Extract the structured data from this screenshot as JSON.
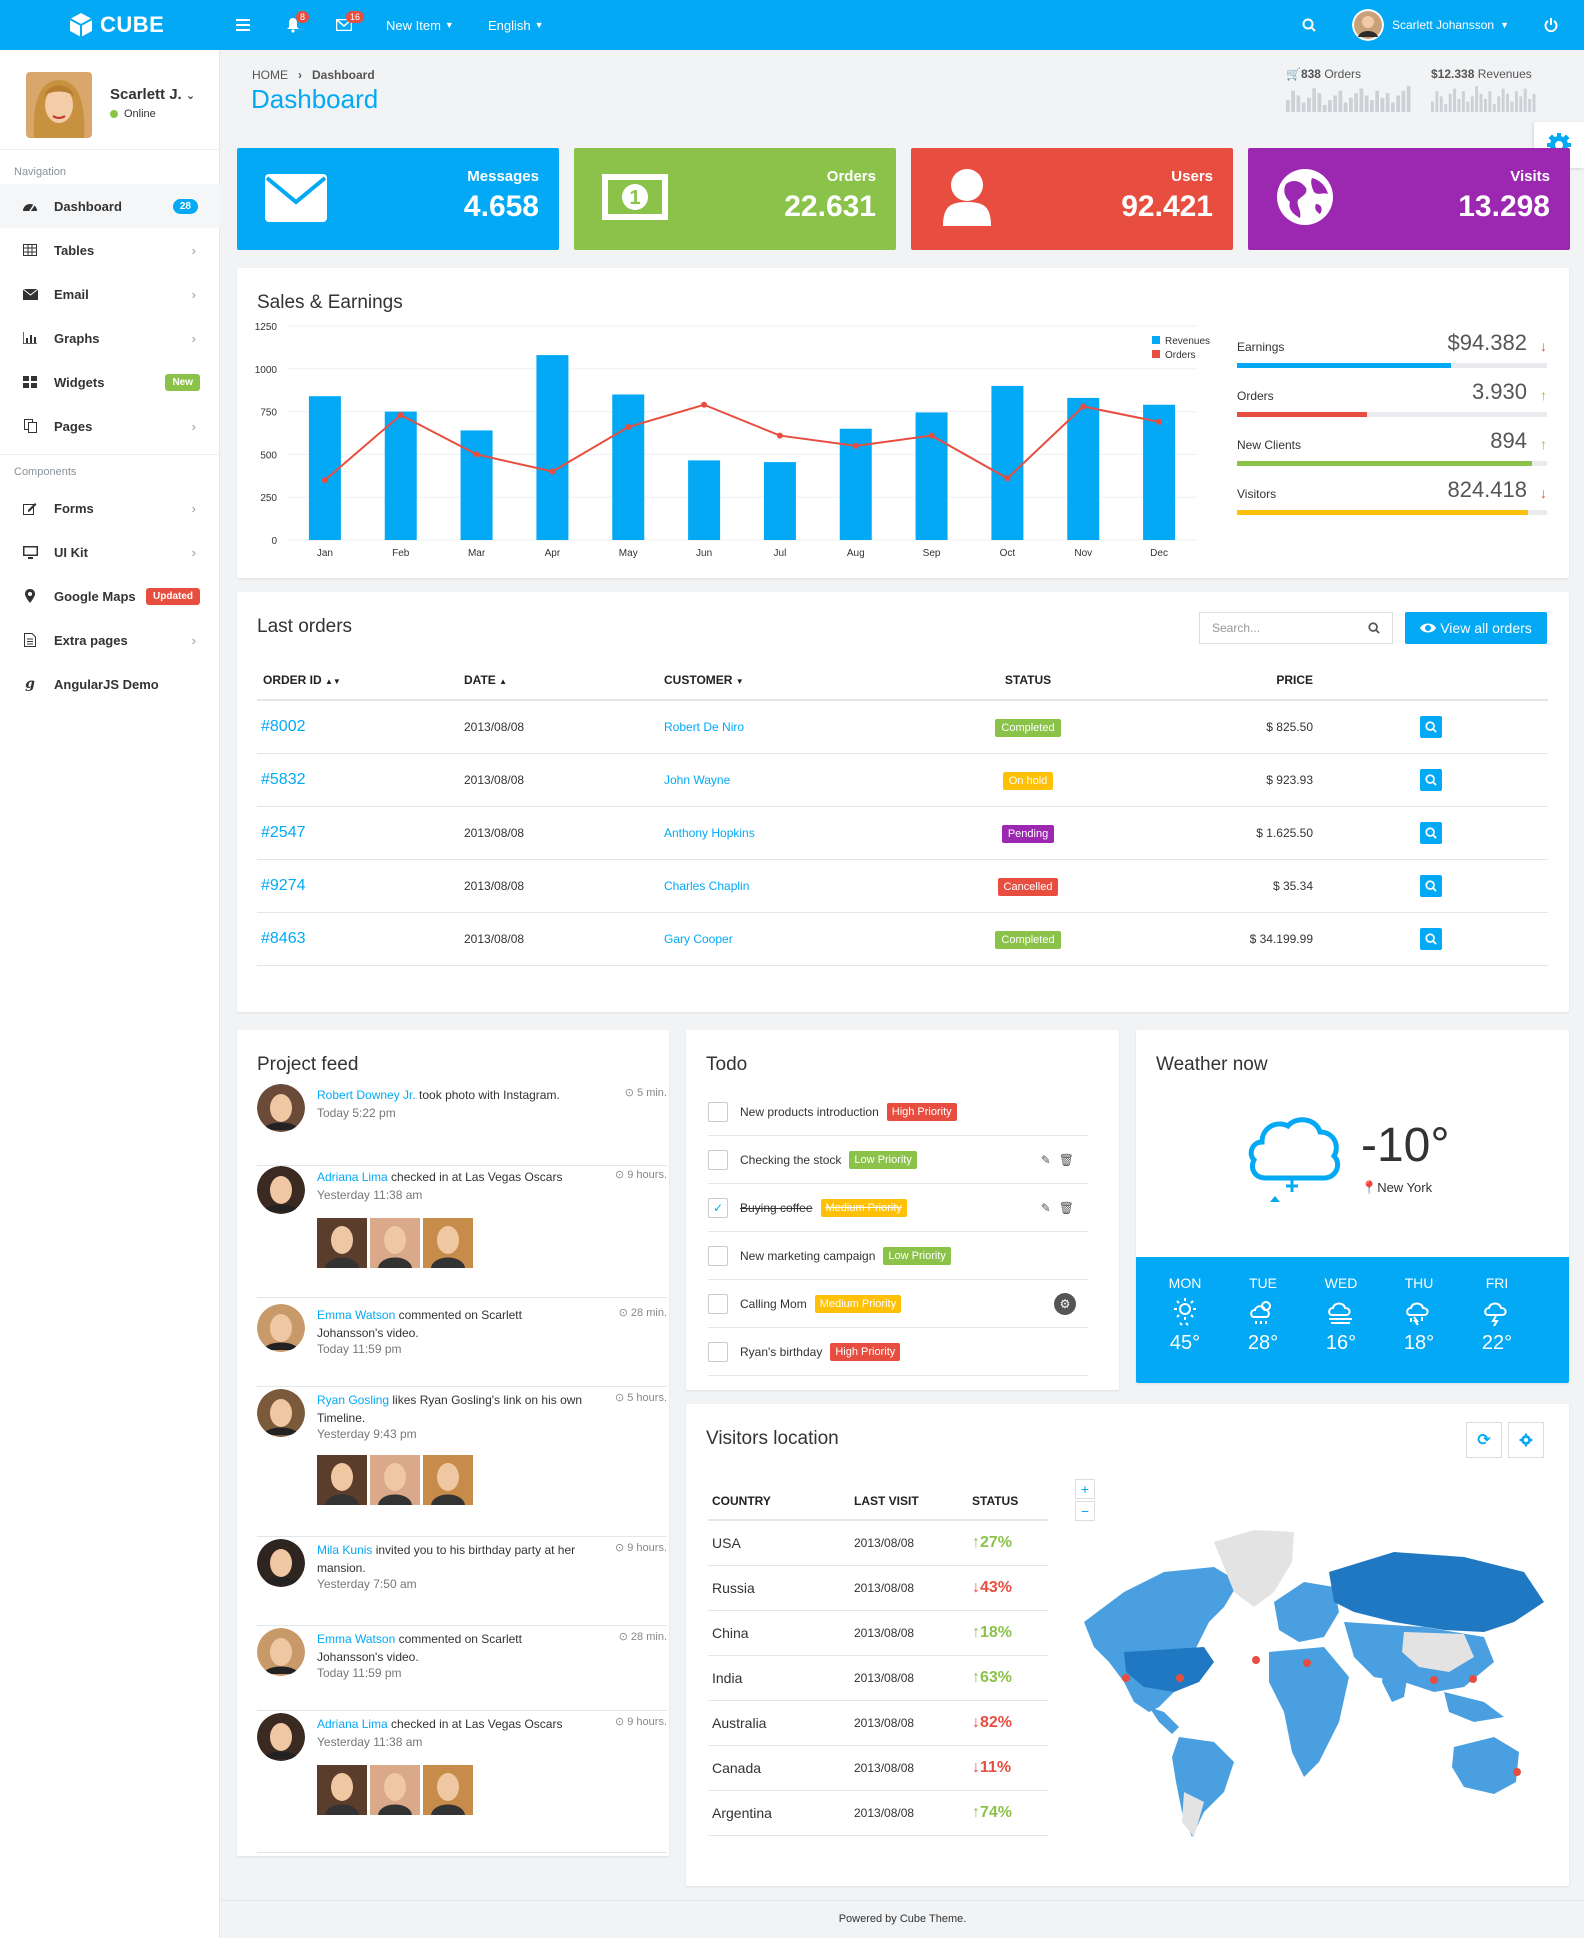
{
  "topbar": {
    "brand": "CUBE",
    "notif_count": "8",
    "mail_count": "16",
    "new_item": "New Item",
    "language": "English",
    "user": "Scarlett Johansson"
  },
  "sidebar": {
    "user_name": "Scarlett J.",
    "status": "Online",
    "nav_title": "Navigation",
    "comp_title": "Components",
    "items": [
      {
        "label": "Dashboard",
        "badge": "28"
      },
      {
        "label": "Tables"
      },
      {
        "label": "Email"
      },
      {
        "label": "Graphs"
      },
      {
        "label": "Widgets",
        "badge": "New"
      },
      {
        "label": "Pages"
      }
    ],
    "comp_items": [
      {
        "label": "Forms"
      },
      {
        "label": "UI Kit"
      },
      {
        "label": "Google Maps",
        "badge": "Updated"
      },
      {
        "label": "Extra pages"
      },
      {
        "label": "AngularJS Demo"
      }
    ]
  },
  "header": {
    "crumb_home": "HOME",
    "crumb_current": "Dashboard",
    "title": "Dashboard",
    "orders_stat": "838",
    "orders_stat_label": "Orders",
    "rev_stat": "$12.338",
    "rev_stat_label": "Revenues",
    "spark1": [
      5,
      9,
      7,
      4,
      6,
      10,
      8,
      3,
      5,
      7,
      9,
      4,
      6,
      8,
      10,
      7,
      5,
      9,
      6,
      8,
      4,
      7,
      9,
      11
    ],
    "spark2": [
      4,
      8,
      6,
      3,
      7,
      9,
      5,
      8,
      4,
      6,
      10,
      7,
      5,
      8,
      3,
      6,
      9,
      7,
      4,
      8,
      6,
      9,
      5,
      7
    ]
  },
  "stats": [
    {
      "label": "Messages",
      "value": "4.658",
      "color": "#03a9f4"
    },
    {
      "label": "Orders",
      "value": "22.631",
      "color": "#8bc34a"
    },
    {
      "label": "Users",
      "value": "92.421",
      "color": "#e84e40"
    },
    {
      "label": "Visits",
      "value": "13.298",
      "color": "#9c27b0"
    }
  ],
  "sales": {
    "title": "Sales & Earnings",
    "metrics": [
      {
        "label": "Earnings",
        "value": "$94.382",
        "dir": "down",
        "fill": 0.69,
        "color": "#03a9f4"
      },
      {
        "label": "Orders",
        "value": "3.930",
        "dir": "up",
        "fill": 0.42,
        "color": "#e84e40"
      },
      {
        "label": "New Clients",
        "value": "894",
        "dir": "up",
        "fill": 0.95,
        "color": "#8bc34a"
      },
      {
        "label": "Visitors",
        "value": "824.418",
        "dir": "down",
        "fill": 0.94,
        "color": "#ffc107"
      }
    ]
  },
  "chart_data": {
    "type": "bar",
    "categories": [
      "Jan",
      "Feb",
      "Mar",
      "Apr",
      "May",
      "Jun",
      "Jul",
      "Aug",
      "Sep",
      "Oct",
      "Nov",
      "Dec"
    ],
    "series": [
      {
        "name": "Revenues",
        "type": "bar",
        "color": "#03a9f4",
        "values": [
          840,
          750,
          640,
          1080,
          850,
          465,
          455,
          650,
          745,
          900,
          830,
          790
        ]
      },
      {
        "name": "Orders",
        "type": "line",
        "color": "#e84e40",
        "values": [
          350,
          730,
          500,
          400,
          660,
          790,
          610,
          550,
          610,
          360,
          780,
          690
        ]
      }
    ],
    "ylim": [
      0,
      1250
    ],
    "yticks": [
      0,
      250,
      500,
      750,
      1000,
      1250
    ],
    "legend": "top-right",
    "grid": true
  },
  "orders": {
    "title": "Last orders",
    "search_placeholder": "Search...",
    "view_all": "View all orders",
    "headers": [
      "ORDER ID",
      "DATE",
      "CUSTOMER",
      "STATUS",
      "PRICE"
    ],
    "rows": [
      {
        "id": "#8002",
        "date": "2013/08/08",
        "customer": "Robert De Niro",
        "status": "Completed",
        "status_color": "#8bc34a",
        "price": "$ 825.50"
      },
      {
        "id": "#5832",
        "date": "2013/08/08",
        "customer": "John Wayne",
        "status": "On hold",
        "status_color": "#ffc107",
        "price": "$ 923.93"
      },
      {
        "id": "#2547",
        "date": "2013/08/08",
        "customer": "Anthony Hopkins",
        "status": "Pending",
        "status_color": "#9c27b0",
        "price": "$ 1.625.50"
      },
      {
        "id": "#9274",
        "date": "2013/08/08",
        "customer": "Charles Chaplin",
        "status": "Cancelled",
        "status_color": "#e84e40",
        "price": "$ 35.34"
      },
      {
        "id": "#8463",
        "date": "2013/08/08",
        "customer": "Gary Cooper",
        "status": "Completed",
        "status_color": "#8bc34a",
        "price": "$ 34.199.99"
      }
    ]
  },
  "feed": {
    "title": "Project feed",
    "items": [
      {
        "name": "Robert Downey Jr.",
        "text": " took photo with Instagram.",
        "time": "Today 5:22 pm",
        "ago": "5 min."
      },
      {
        "name": "Adriana Lima",
        "text": " checked in at Las Vegas Oscars",
        "time": "Yesterday 11:38 am",
        "ago": "9 hours."
      },
      {
        "name": "Emma Watson",
        "text": " commented on Scarlett Johansson's video.",
        "time": "Today 11:59 pm",
        "ago": "28 min."
      },
      {
        "name": "Ryan Gosling",
        "text": " likes Ryan Gosling's link on his own Timeline.",
        "time": "Yesterday 9:43 pm",
        "ago": "5 hours."
      },
      {
        "name": "Mila Kunis",
        "text": " invited you to his birthday party at her mansion.",
        "time": "Yesterday 7:50 am",
        "ago": "9 hours."
      },
      {
        "name": "Emma Watson",
        "text": " commented on Scarlett Johansson's video.",
        "time": "Today 11:59 pm",
        "ago": "28 min."
      },
      {
        "name": "Adriana Lima",
        "text": " checked in at Las Vegas Oscars",
        "time": "Yesterday 11:38 am",
        "ago": "9 hours."
      }
    ]
  },
  "todo": {
    "title": "Todo",
    "items": [
      {
        "text": "New products introduction",
        "priority": "High Priority",
        "color": "#e84e40",
        "checked": false
      },
      {
        "text": "Checking the stock",
        "priority": "Low Priority",
        "color": "#8bc34a",
        "checked": false
      },
      {
        "text": "Buying coffee",
        "priority": "Medium Priority",
        "color": "#ffc107",
        "checked": true
      },
      {
        "text": "New marketing campaign",
        "priority": "Low Priority",
        "color": "#8bc34a",
        "checked": false
      },
      {
        "text": "Calling Mom",
        "priority": "Medium Priority",
        "color": "#ffc107",
        "checked": false
      },
      {
        "text": "Ryan's birthday",
        "priority": "High Priority",
        "color": "#e84e40",
        "checked": false
      }
    ]
  },
  "weather": {
    "title": "Weather now",
    "temp": "-10°",
    "city": "New York",
    "days": [
      {
        "d": "MON",
        "t": "45°"
      },
      {
        "d": "TUE",
        "t": "28°"
      },
      {
        "d": "WED",
        "t": "16°"
      },
      {
        "d": "THU",
        "t": "18°"
      },
      {
        "d": "FRI",
        "t": "22°"
      }
    ]
  },
  "visitors": {
    "title": "Visitors location",
    "headers": [
      "COUNTRY",
      "LAST VISIT",
      "STATUS"
    ],
    "rows": [
      {
        "c": "USA",
        "d": "2013/08/08",
        "s": "27%",
        "dir": "up"
      },
      {
        "c": "Russia",
        "d": "2013/08/08",
        "s": "43%",
        "dir": "down"
      },
      {
        "c": "China",
        "d": "2013/08/08",
        "s": "18%",
        "dir": "up"
      },
      {
        "c": "India",
        "d": "2013/08/08",
        "s": "63%",
        "dir": "up"
      },
      {
        "c": "Australia",
        "d": "2013/08/08",
        "s": "82%",
        "dir": "down"
      },
      {
        "c": "Canada",
        "d": "2013/08/08",
        "s": "11%",
        "dir": "down"
      },
      {
        "c": "Argentina",
        "d": "2013/08/08",
        "s": "74%",
        "dir": "up"
      }
    ]
  },
  "footer": "Powered by Cube Theme."
}
